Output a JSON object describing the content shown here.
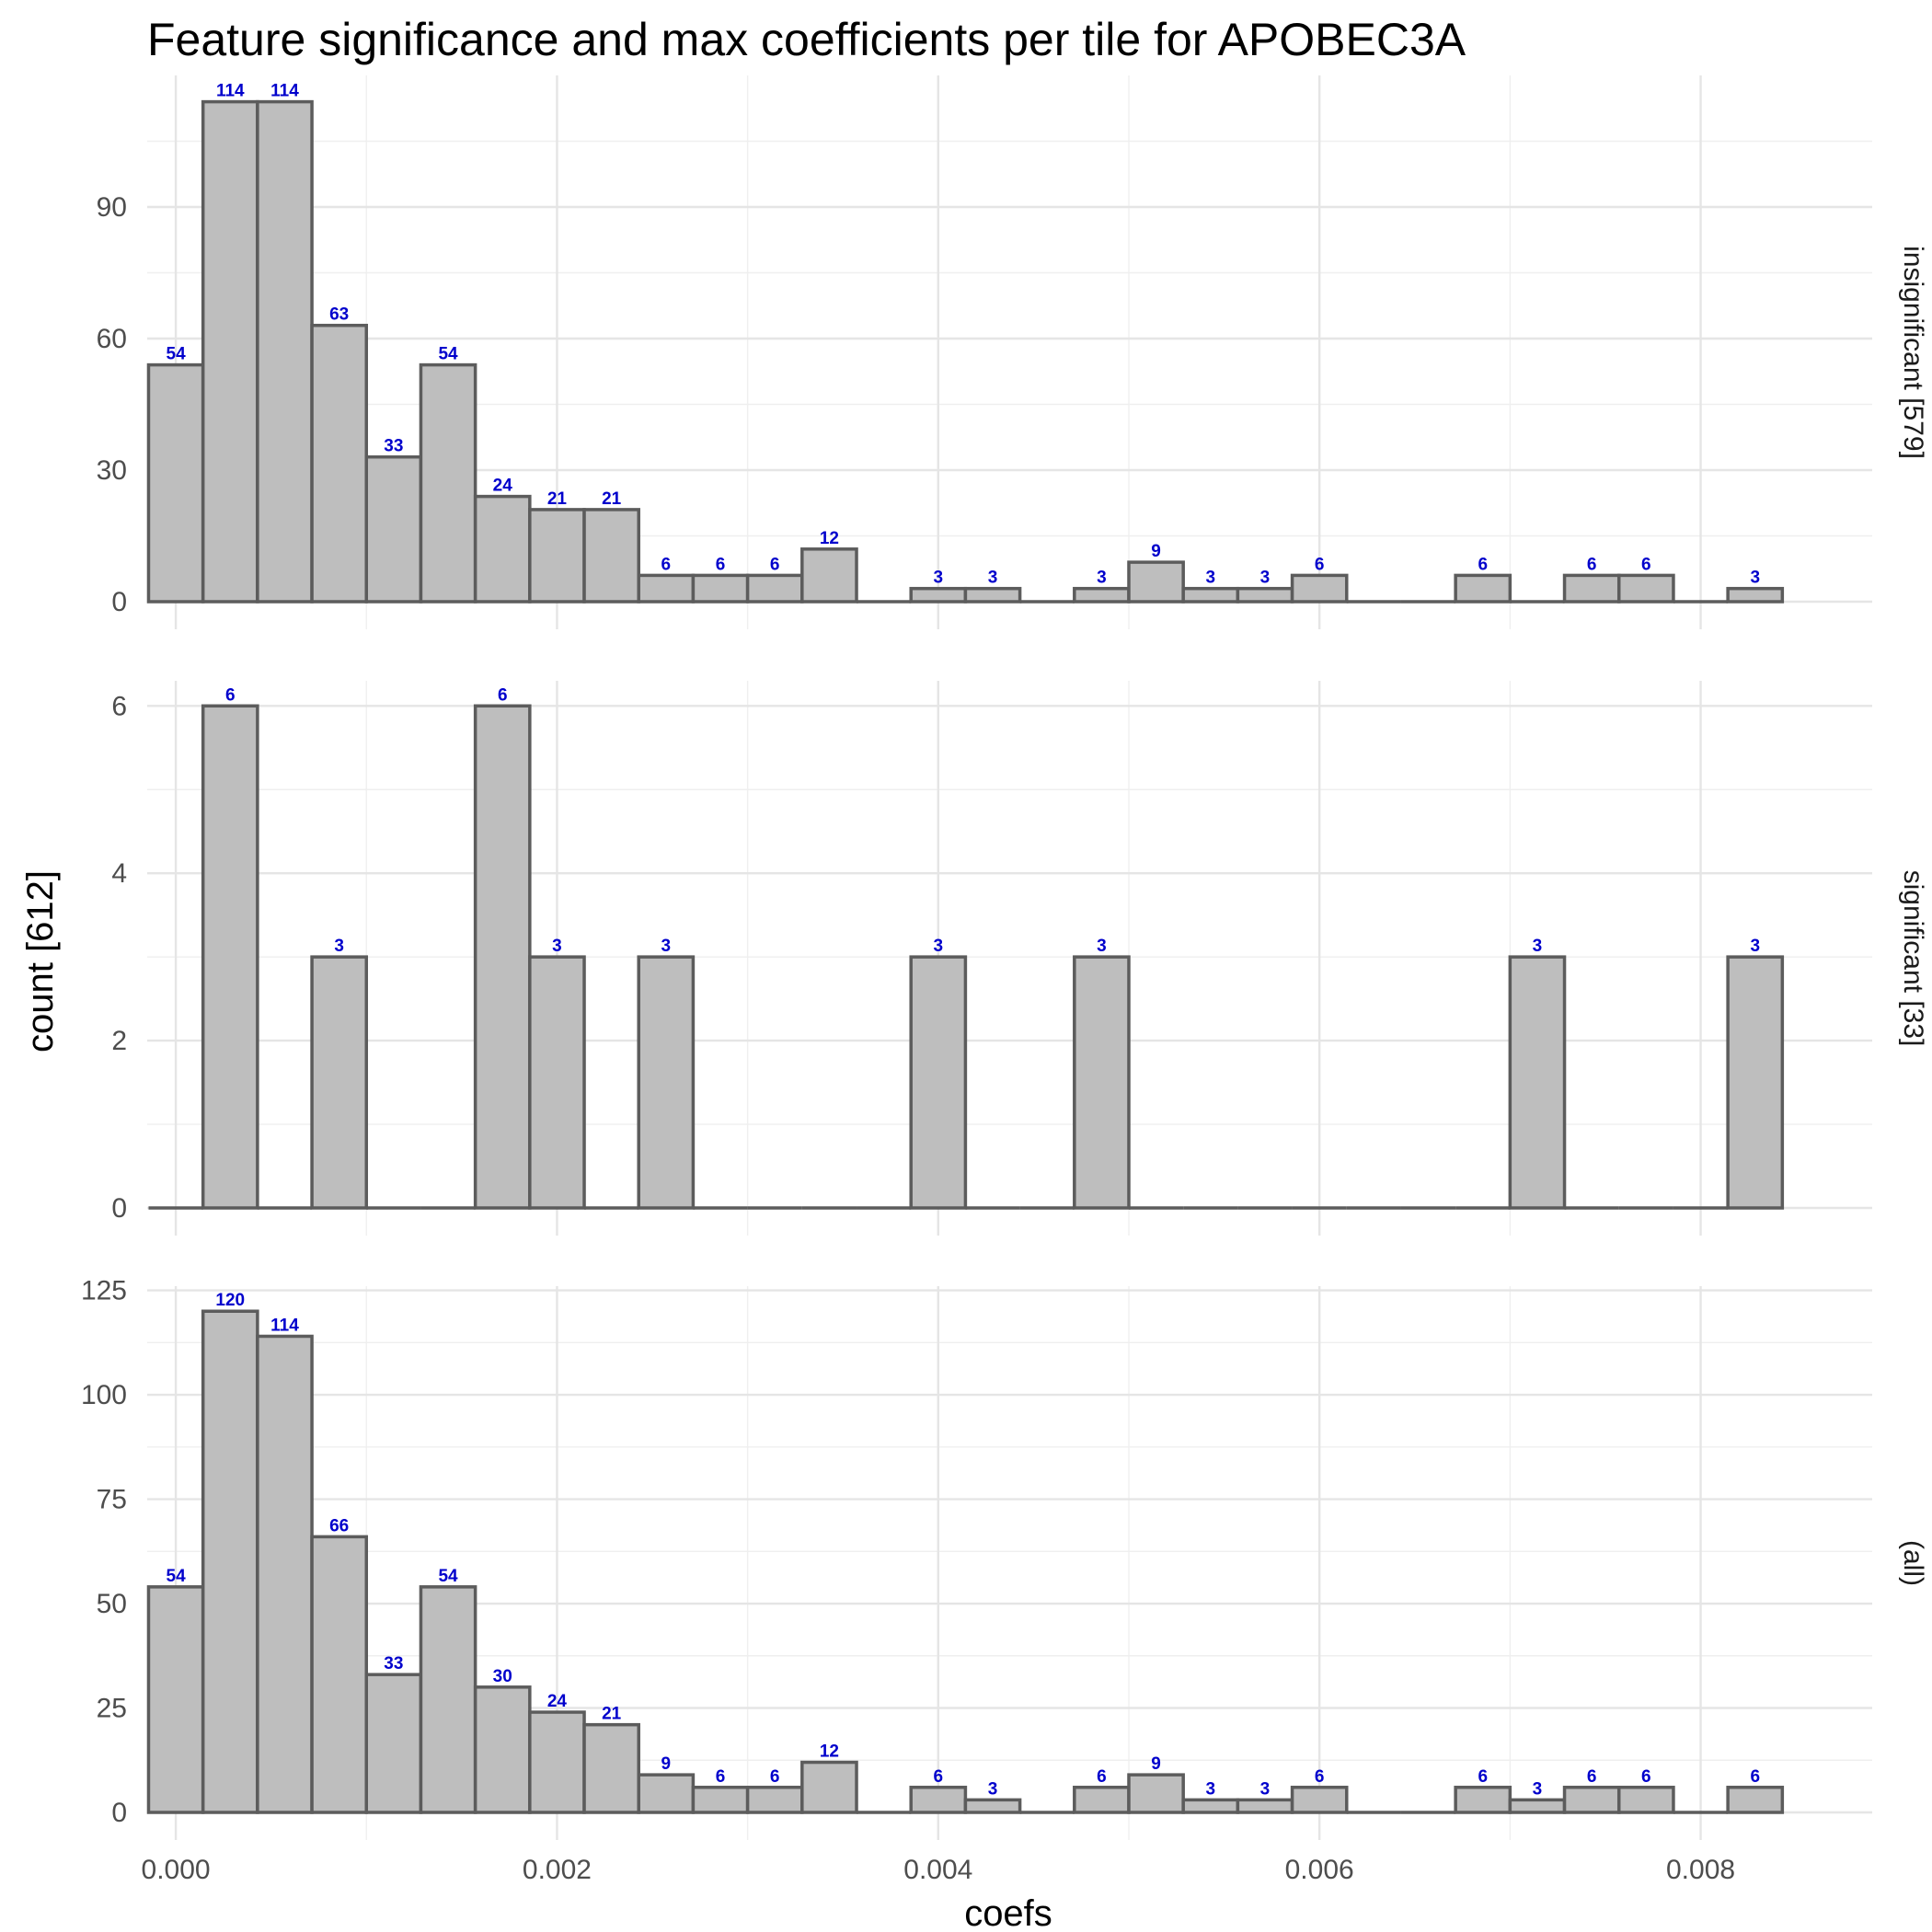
{
  "chart_data": {
    "type": "bar",
    "title": "Feature significance and max coefficients per tile for APOBEC3A",
    "xlabel": "coefs",
    "ylabel": "count [612]",
    "xlim": [
      -0.00015,
      0.0089
    ],
    "x_ticks": [
      "0.000",
      "0.002",
      "0.004",
      "0.006",
      "0.008"
    ],
    "x_tick_values": [
      0,
      0.002,
      0.004,
      0.006,
      0.008
    ],
    "bin_start": -0.000142857,
    "bin_width": 0.000285714,
    "grid": true,
    "facets": [
      {
        "label": "insignificant [579]",
        "ylim": [
          0,
          120
        ],
        "y_ticks": [
          0,
          30,
          60,
          90
        ],
        "values": [
          54,
          114,
          114,
          63,
          33,
          54,
          24,
          21,
          21,
          6,
          6,
          6,
          12,
          0,
          3,
          3,
          0,
          3,
          9,
          3,
          3,
          6,
          0,
          0,
          6,
          0,
          6,
          6,
          0,
          3
        ]
      },
      {
        "label": "significant [33]",
        "ylim": [
          0,
          6.3
        ],
        "y_ticks": [
          0,
          2,
          4,
          6
        ],
        "values": [
          0,
          6,
          0,
          3,
          0,
          0,
          6,
          3,
          0,
          3,
          0,
          0,
          0,
          0,
          3,
          0,
          0,
          3,
          0,
          0,
          0,
          0,
          0,
          0,
          0,
          3,
          0,
          0,
          0,
          3
        ]
      },
      {
        "label": "(all)",
        "ylim": [
          0,
          126
        ],
        "y_ticks": [
          0,
          25,
          50,
          75,
          100,
          125
        ],
        "values": [
          54,
          120,
          114,
          66,
          33,
          54,
          30,
          24,
          21,
          9,
          6,
          6,
          12,
          0,
          6,
          3,
          0,
          6,
          9,
          3,
          3,
          6,
          0,
          0,
          6,
          3,
          6,
          6,
          0,
          6
        ]
      }
    ]
  }
}
